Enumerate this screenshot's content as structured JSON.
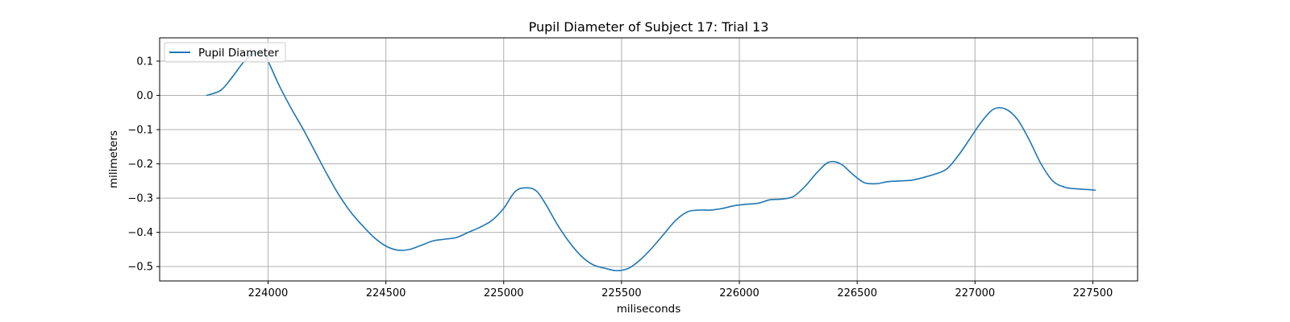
{
  "chart_data": {
    "type": "line",
    "title": "Pupil Diameter of Subject 17: Trial 13",
    "xlabel": "miliseconds",
    "ylabel": "milimeters",
    "xlim": [
      223540,
      227690
    ],
    "ylim": [
      -0.542,
      0.168
    ],
    "xticks": [
      224000,
      224500,
      225000,
      225500,
      226000,
      226500,
      227000,
      227500
    ],
    "yticks": [
      0.1,
      0.0,
      -0.1,
      -0.2,
      -0.3,
      -0.4,
      -0.5
    ],
    "ytick_labels": [
      "0.1",
      "0.0",
      "−0.1",
      "−0.2",
      "−0.3",
      "−0.4",
      "−0.5"
    ],
    "grid": true,
    "legend_location": "upper left",
    "series": [
      {
        "name": "Pupil Diameter",
        "color": "#1f77b4",
        "x": [
          223740,
          223800,
          223850,
          223900,
          223950,
          223980,
          224000,
          224050,
          224100,
          224150,
          224200,
          224250,
          224300,
          224350,
          224400,
          224450,
          224500,
          224550,
          224600,
          224650,
          224700,
          224750,
          224800,
          224850,
          224900,
          224950,
          225000,
          225050,
          225100,
          225140,
          225180,
          225230,
          225280,
          225330,
          225380,
          225430,
          225480,
          225530,
          225580,
          225630,
          225680,
          225730,
          225780,
          225830,
          225880,
          225930,
          225980,
          226030,
          226080,
          226130,
          226180,
          226230,
          226280,
          226330,
          226380,
          226430,
          226480,
          226530,
          226580,
          226630,
          226680,
          226730,
          226780,
          226830,
          226880,
          226930,
          226980,
          227030,
          227080,
          227130,
          227180,
          227230,
          227280,
          227330,
          227380,
          227430,
          227480,
          227510
        ],
        "values": [
          0.0,
          0.015,
          0.055,
          0.1,
          0.125,
          0.12,
          0.1,
          0.025,
          -0.04,
          -0.1,
          -0.165,
          -0.23,
          -0.29,
          -0.34,
          -0.38,
          -0.415,
          -0.44,
          -0.452,
          -0.45,
          -0.438,
          -0.425,
          -0.42,
          -0.415,
          -0.4,
          -0.385,
          -0.365,
          -0.33,
          -0.28,
          -0.27,
          -0.28,
          -0.32,
          -0.38,
          -0.43,
          -0.47,
          -0.495,
          -0.505,
          -0.512,
          -0.505,
          -0.48,
          -0.445,
          -0.405,
          -0.365,
          -0.34,
          -0.335,
          -0.335,
          -0.33,
          -0.322,
          -0.318,
          -0.315,
          -0.305,
          -0.303,
          -0.295,
          -0.265,
          -0.225,
          -0.195,
          -0.2,
          -0.23,
          -0.255,
          -0.258,
          -0.252,
          -0.25,
          -0.248,
          -0.24,
          -0.23,
          -0.215,
          -0.175,
          -0.125,
          -0.075,
          -0.04,
          -0.04,
          -0.07,
          -0.13,
          -0.2,
          -0.25,
          -0.268,
          -0.273,
          -0.275,
          -0.277
        ]
      }
    ]
  }
}
